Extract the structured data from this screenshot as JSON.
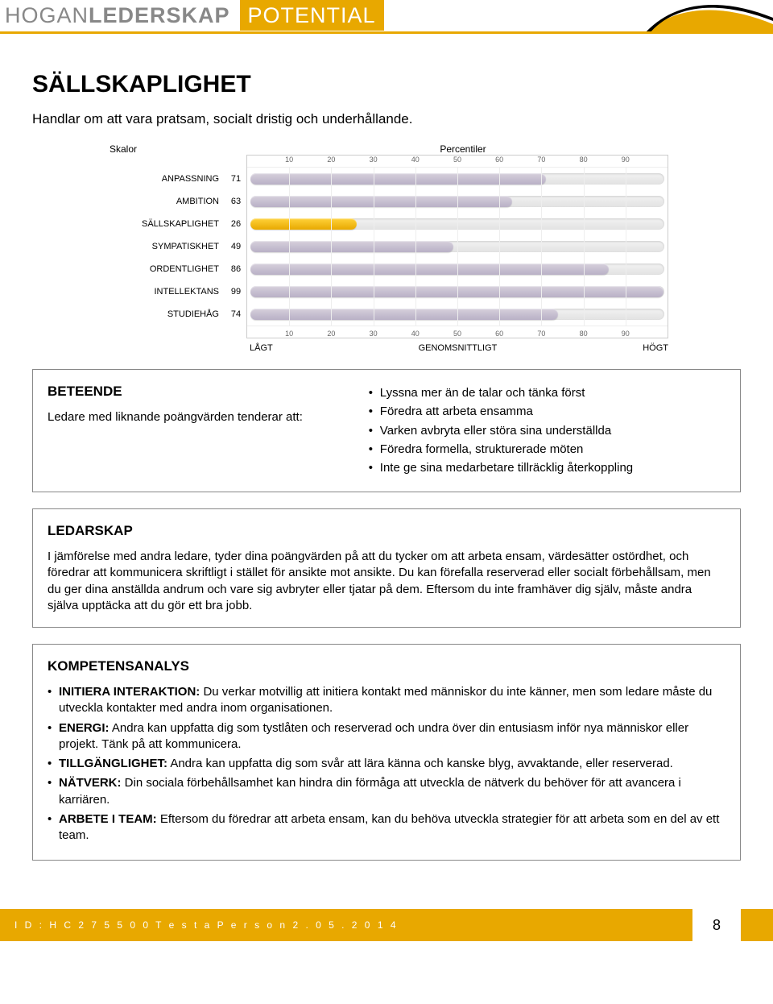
{
  "header": {
    "brand_part1": "HOGAN",
    "brand_part2": "LEDERSKAP",
    "tag": "POTENTIAL"
  },
  "page_title": "SÄLLSKAPLIGHET",
  "subtitle": "Handlar om att vara pratsam, socialt dristig och underhållande.",
  "chart": {
    "label_skalor": "Skalor",
    "label_percentiler": "Percentiler",
    "ticks": [
      10,
      20,
      30,
      40,
      50,
      60,
      70,
      80,
      90
    ],
    "rows": [
      {
        "label": "ANPASSNING",
        "value": 71
      },
      {
        "label": "AMBITION",
        "value": 63
      },
      {
        "label": "SÄLLSKAPLIGHET",
        "value": 26
      },
      {
        "label": "SYMPATISKHET",
        "value": 49
      },
      {
        "label": "ORDENTLIGHET",
        "value": 86
      },
      {
        "label": "INTELLEKTANS",
        "value": 99
      },
      {
        "label": "STUDIEHÅG",
        "value": 74
      }
    ],
    "highlight_index": 2,
    "bar_color_normal_top": "#d6d0dc",
    "bar_color_normal_bottom": "#b9b0c6",
    "bar_color_highlight_top": "#ffd23a",
    "bar_color_highlight_bottom": "#e8a800",
    "legend": {
      "low": "LÅGT",
      "mid": "GENOMSNITTLIGT",
      "high": "HÖGT"
    }
  },
  "beteende": {
    "heading": "BETEENDE",
    "lead": "Ledare med liknande poängvärden tenderar att:",
    "bullets": [
      "Lyssna mer än de talar och tänka först",
      "Föredra att arbeta ensamma",
      "Varken avbryta eller störa sina underställda",
      "Föredra formella, strukturerade möten",
      "Inte ge sina medarbetare tillräcklig återkoppling"
    ]
  },
  "ledarskap": {
    "heading": "LEDARSKAP",
    "para": "I jämförelse med andra ledare, tyder dina poängvärden på att du tycker om att arbeta ensam, värdesätter ostördhet, och föredrar att kommunicera skriftligt i stället för ansikte mot ansikte. Du kan förefalla reserverad eller socialt förbehållsam, men du ger dina anställda andrum och vare sig avbryter eller tjatar på dem. Eftersom du inte framhäver dig själv, måste andra själva upptäcka att du gör ett bra jobb."
  },
  "kompetens": {
    "heading": "KOMPETENSANALYS",
    "items": [
      {
        "label": "INITIERA INTERAKTION:",
        "text": " Du verkar motvillig att initiera kontakt med människor du inte känner, men som ledare måste du utveckla kontakter med andra inom organisationen."
      },
      {
        "label": "ENERGI:",
        "text": " Andra kan uppfatta dig som tystlåten och reserverad och undra över din entusiasm inför nya människor eller projekt. Tänk på att kommunicera."
      },
      {
        "label": "TILLGÄNGLIGHET:",
        "text": " Andra kan uppfatta dig som svår att lära känna och kanske blyg, avvaktande, eller reserverad."
      },
      {
        "label": "NÄTVERK:",
        "text": " Din sociala förbehållsamhet kan hindra din förmåga att utveckla de nätverk du behöver för att avancera i karriären."
      },
      {
        "label": "ARBETE I TEAM:",
        "text": " Eftersom du föredrar att arbeta ensam, kan du behöva utveckla strategier för att arbeta som en del av ett team."
      }
    ]
  },
  "footer": {
    "id_line": "I D : H C 2 7 5 5 0 0   T e s t a   P e r s o n   2 . 0 5 . 2 0 1 4",
    "page": "8"
  },
  "colors": {
    "accent": "#e8a800"
  }
}
